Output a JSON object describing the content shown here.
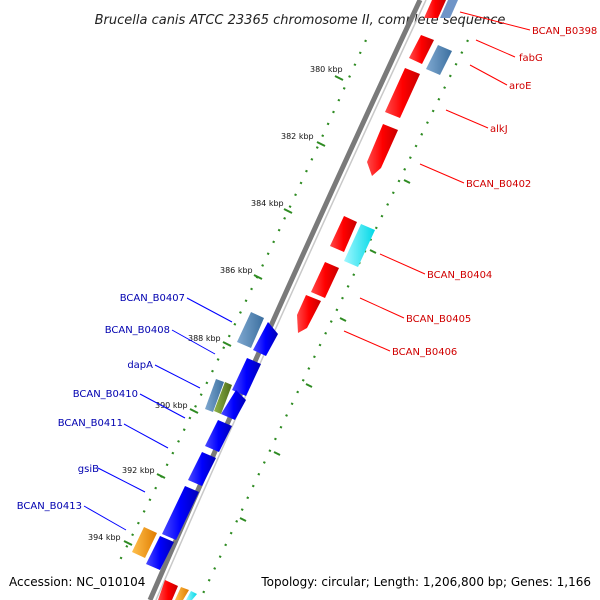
{
  "title": "Brucella canis ATCC 23365 chromosome II, complete sequence",
  "footer": {
    "accession": "Accession: NC_010104",
    "summary": "Topology: circular; Length: 1,206,800 bp; Genes: 1,166"
  },
  "ticks": [
    "380 kbp",
    "382 kbp",
    "384 kbp",
    "386 kbp",
    "388 kbp",
    "390 kbp",
    "392 kbp",
    "394 kbp"
  ],
  "forward_labels": [
    "BCAN_B0398",
    "fabG",
    "aroE",
    "alkJ",
    "BCAN_B0402",
    "BCAN_B0404",
    "BCAN_B0405",
    "BCAN_B0406"
  ],
  "reverse_labels": [
    "BCAN_B0407",
    "BCAN_B0408",
    "dapA",
    "BCAN_B0410",
    "BCAN_B0411",
    "gsiB",
    "BCAN_B0413"
  ],
  "colors": {
    "forward_cds": "#ff0000",
    "reverse_cds": "#0000ff",
    "steelblue_gene": "#4a7fb0",
    "cyan_gene": "#00e5ee",
    "olive_gene": "#6b8e23",
    "orange_gene": "#ff9900",
    "backbone": "#7a7a7a",
    "tick_green": "#2e8b22"
  }
}
